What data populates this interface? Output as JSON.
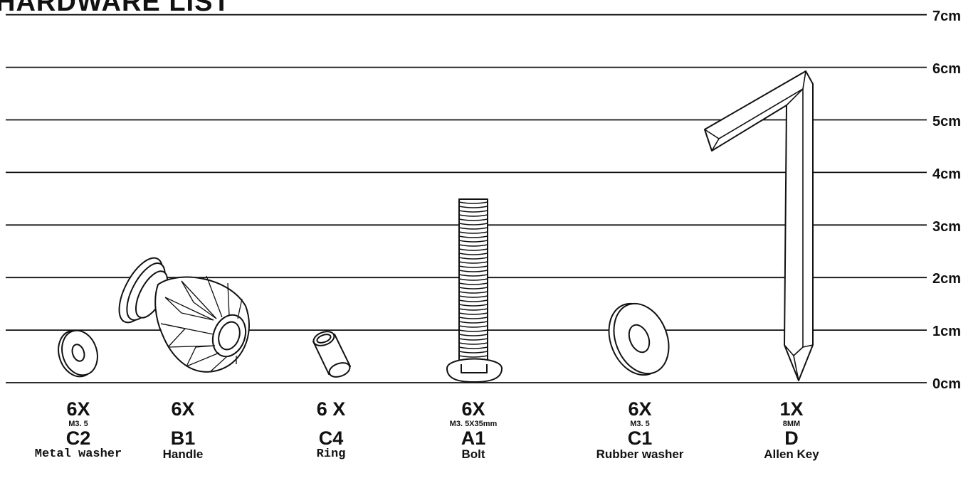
{
  "title": "HARDWARE LIST",
  "scale": {
    "unit": "cm",
    "ticks": [
      "0cm",
      "1cm",
      "2cm",
      "3cm",
      "4cm",
      "5cm",
      "6cm",
      "7cm"
    ]
  },
  "items": [
    {
      "qty": "6X",
      "spec": "M3. 5",
      "code": "C2",
      "name": "Metal washer",
      "icon": "metal-washer-icon",
      "height_cm": 0.9
    },
    {
      "qty": "6X",
      "spec": "",
      "code": "B1",
      "name": "Handle",
      "icon": "handle-knob-icon",
      "height_cm": 2.3
    },
    {
      "qty": "6 X",
      "spec": "",
      "code": "C4",
      "name": "Ring",
      "icon": "ring-sleeve-icon",
      "height_cm": 0.8
    },
    {
      "qty": "6X",
      "spec": "M3. 5X35mm",
      "code": "A1",
      "name": "Bolt",
      "icon": "bolt-icon",
      "height_cm": 3.5
    },
    {
      "qty": "6X",
      "spec": "M3. 5",
      "code": "C1",
      "name": "Rubber washer",
      "icon": "rubber-washer-icon",
      "height_cm": 1.4
    },
    {
      "qty": "1X",
      "spec": "8MM",
      "code": "D",
      "name": "Allen Key",
      "icon": "allen-key-icon",
      "height_cm": 5.9
    }
  ],
  "colors": {
    "line": "#111111",
    "background": "#ffffff"
  }
}
